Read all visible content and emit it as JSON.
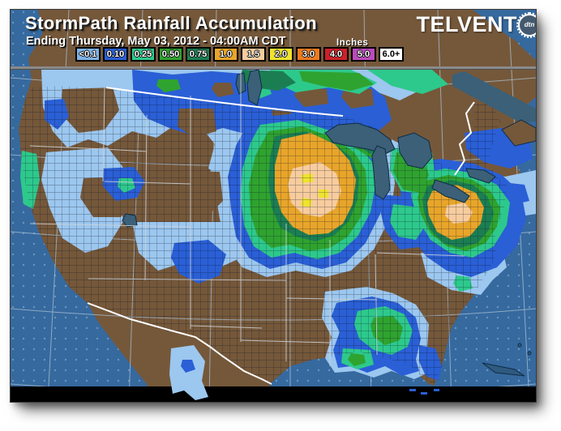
{
  "header": {
    "title": "StormPath Rainfall Accumulation",
    "subtitle": "Ending Thursday, May 03, 2012 - 04:00AM CDT",
    "units_label": "Inches"
  },
  "logo": {
    "text": "TELVENT",
    "badge": "dtn"
  },
  "legend": {
    "items": [
      {
        "label": "<0.1",
        "color": "#7EB3E8",
        "text_color": "#FFFFFF"
      },
      {
        "label": "0.10",
        "color": "#2A5FD6",
        "text_color": "#FFFFFF"
      },
      {
        "label": "0.25",
        "color": "#2DC98C",
        "text_color": "#FFFFFF"
      },
      {
        "label": "0.50",
        "color": "#2FA32F",
        "text_color": "#FFFFFF"
      },
      {
        "label": "0.75",
        "color": "#1B7E52",
        "text_color": "#FFFFFF"
      },
      {
        "label": "1.0",
        "color": "#E8A52A",
        "text_color": "#FFFFFF"
      },
      {
        "label": "1.5",
        "color": "#F7CC9E",
        "text_color": "#FFFFFF"
      },
      {
        "label": "2.0",
        "color": "#EFE32F",
        "text_color": "#FFFFFF"
      },
      {
        "label": "3.0",
        "color": "#EE7B1E",
        "text_color": "#FFFFFF"
      },
      {
        "label": "4.0",
        "color": "#CE2029",
        "text_color": "#FFFFFF"
      },
      {
        "label": "5.0",
        "color": "#BD4ABD",
        "text_color": "#FFFFFF"
      },
      {
        "label": "6.0+",
        "color": "#FFFFFF",
        "text_color": "#000000"
      }
    ]
  },
  "map": {
    "ocean_color": "#36699E",
    "land_color": "#75583A",
    "lake_color": "#3B6078",
    "precip_colors": {
      "lt_0_1": "#9CC7EF",
      "0_10": "#2A5FD6",
      "0_25": "#2DC98C",
      "0_50": "#2FA32F",
      "0_75": "#1B7E52",
      "1_0": "#E8A52A",
      "1_5": "#F7CC9E",
      "2_0": "#EFE32F"
    }
  }
}
